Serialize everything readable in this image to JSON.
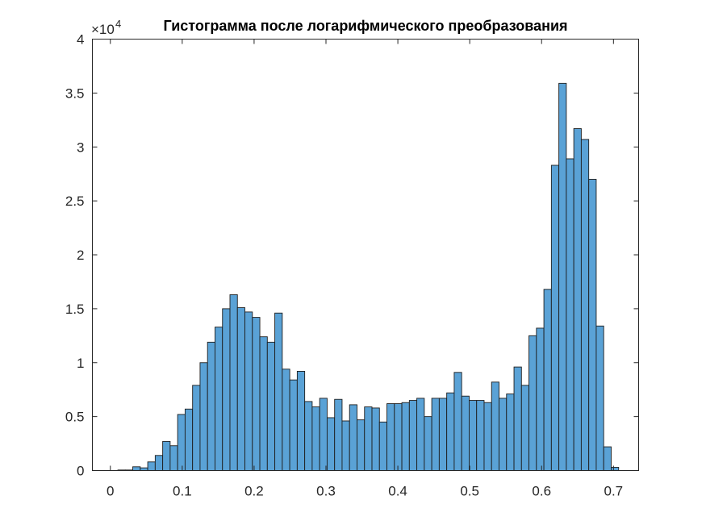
{
  "chart_data": {
    "type": "bar",
    "title": "Гистограмма после логарифмического преобразования",
    "xlabel": "",
    "ylabel": "",
    "xlim": [
      -0.025,
      0.735
    ],
    "ylim": [
      0,
      40000
    ],
    "y_exponent_label": "×10",
    "y_exponent_power": "4",
    "xticks": [
      0,
      0.1,
      0.2,
      0.3,
      0.4,
      0.5,
      0.6,
      0.7
    ],
    "xtick_labels": [
      "0",
      "0.1",
      "0.2",
      "0.3",
      "0.4",
      "0.5",
      "0.6",
      "0.7"
    ],
    "yticks": [
      0,
      5000,
      10000,
      15000,
      20000,
      25000,
      30000,
      35000,
      40000
    ],
    "ytick_labels": [
      "0",
      "0.5",
      "1",
      "1.5",
      "2",
      "2.5",
      "3",
      "3.5",
      "4"
    ],
    "bin_width": 0.0104,
    "bin_edges_start": 0.0104,
    "values": [
      50,
      50,
      350,
      250,
      800,
      1400,
      2700,
      2300,
      5200,
      5700,
      7900,
      10000,
      11900,
      13300,
      15000,
      16300,
      15100,
      14700,
      14200,
      12400,
      11900,
      14600,
      9400,
      8400,
      9200,
      6400,
      5900,
      6700,
      4900,
      6600,
      4600,
      6100,
      4700,
      5900,
      5800,
      4500,
      6200,
      6200,
      6300,
      6500,
      6700,
      5000,
      6700,
      6700,
      7200,
      9100,
      6900,
      6500,
      6500,
      6300,
      8200,
      6700,
      7100,
      9600,
      7900,
      12500,
      13200,
      16800,
      28300,
      35900,
      28900,
      31700,
      30700,
      27000,
      13400,
      2200,
      300
    ],
    "bar_color": "#5aa2d6",
    "edge_color": "#1e1e1e",
    "grid": false
  }
}
